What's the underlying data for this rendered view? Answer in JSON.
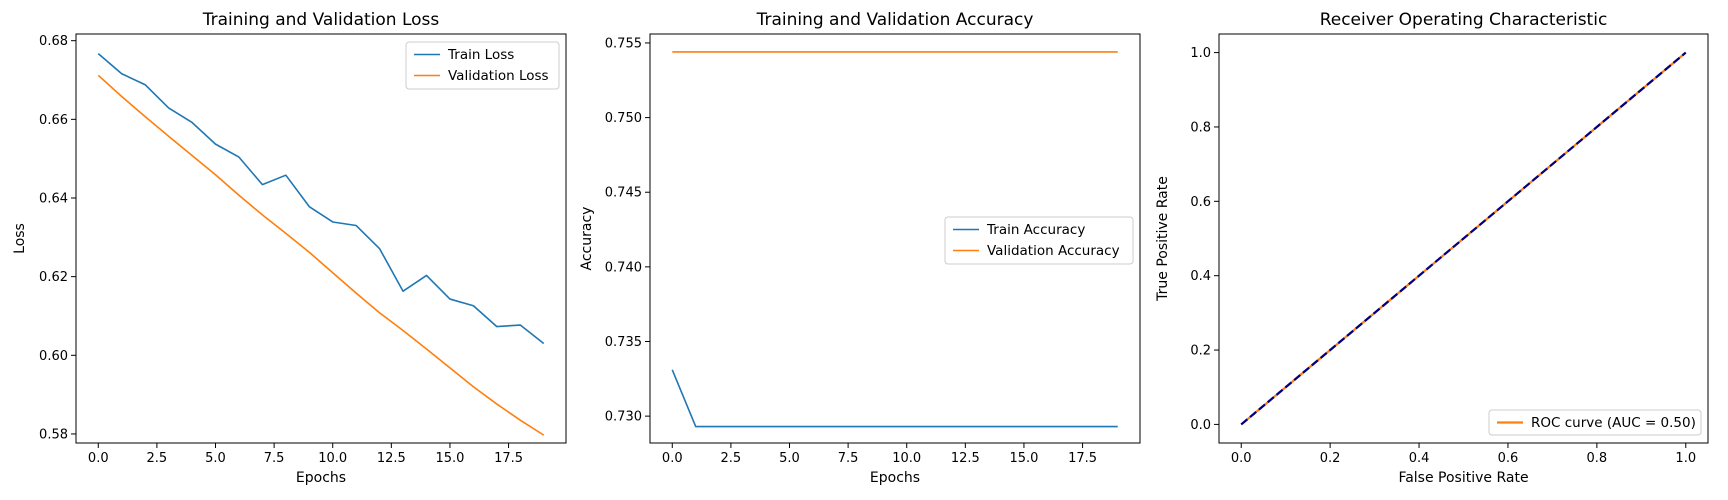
{
  "chart_data": [
    {
      "type": "line",
      "title": "Training and Validation Loss",
      "xlabel": "Epochs",
      "ylabel": "Loss",
      "xlim": [
        -0.95,
        19.95
      ],
      "ylim": [
        0.5777,
        0.6817
      ],
      "xticks": [
        0,
        2.5,
        5,
        7.5,
        10,
        12.5,
        15,
        17.5
      ],
      "xtick_labels": [
        "0.0",
        "2.5",
        "5.0",
        "7.5",
        "10.0",
        "12.5",
        "15.0",
        "17.5"
      ],
      "yticks": [
        0.58,
        0.6,
        0.62,
        0.64,
        0.66,
        0.68
      ],
      "ytick_labels": [
        "0.58",
        "0.60",
        "0.62",
        "0.64",
        "0.66",
        "0.68"
      ],
      "grid": false,
      "legend_position": "upper-right",
      "x": [
        0,
        1,
        2,
        3,
        4,
        5,
        6,
        7,
        8,
        9,
        10,
        11,
        12,
        13,
        14,
        15,
        16,
        17,
        18,
        19
      ],
      "series": [
        {
          "name": "Train Loss",
          "color": "#1f77b4",
          "values": [
            0.6767,
            0.6716,
            0.6688,
            0.6629,
            0.6592,
            0.6537,
            0.6504,
            0.6434,
            0.6458,
            0.6378,
            0.6339,
            0.633,
            0.6271,
            0.6163,
            0.6203,
            0.6143,
            0.6126,
            0.6073,
            0.6077,
            0.603
          ]
        },
        {
          "name": "Validation Loss",
          "color": "#ff7f0e",
          "values": [
            0.6712,
            0.6658,
            0.6607,
            0.6557,
            0.6508,
            0.6459,
            0.6407,
            0.6357,
            0.631,
            0.6262,
            0.621,
            0.6158,
            0.6108,
            0.6063,
            0.6016,
            0.5968,
            0.592,
            0.5876,
            0.5835,
            0.5797
          ]
        }
      ]
    },
    {
      "type": "line",
      "title": "Training and Validation Accuracy",
      "xlabel": "Epochs",
      "ylabel": "Accuracy",
      "xlim": [
        -0.95,
        19.95
      ],
      "ylim": [
        0.7282,
        0.7556
      ],
      "xticks": [
        0,
        2.5,
        5,
        7.5,
        10,
        12.5,
        15,
        17.5
      ],
      "xtick_labels": [
        "0.0",
        "2.5",
        "5.0",
        "7.5",
        "10.0",
        "12.5",
        "15.0",
        "17.5"
      ],
      "yticks": [
        0.73,
        0.735,
        0.74,
        0.745,
        0.75,
        0.755
      ],
      "ytick_labels": [
        "0.730",
        "0.735",
        "0.740",
        "0.745",
        "0.750",
        "0.755"
      ],
      "grid": false,
      "legend_position": "center-right",
      "x": [
        0,
        1,
        2,
        3,
        4,
        5,
        6,
        7,
        8,
        9,
        10,
        11,
        12,
        13,
        14,
        15,
        16,
        17,
        18,
        19
      ],
      "series": [
        {
          "name": "Train Accuracy",
          "color": "#1f77b4",
          "values": [
            0.7331,
            0.7293,
            0.7293,
            0.7293,
            0.7293,
            0.7293,
            0.7293,
            0.7293,
            0.7293,
            0.7293,
            0.7293,
            0.7293,
            0.7293,
            0.7293,
            0.7293,
            0.7293,
            0.7293,
            0.7293,
            0.7293,
            0.7293
          ]
        },
        {
          "name": "Validation Accuracy",
          "color": "#ff7f0e",
          "values": [
            0.7544,
            0.7544,
            0.7544,
            0.7544,
            0.7544,
            0.7544,
            0.7544,
            0.7544,
            0.7544,
            0.7544,
            0.7544,
            0.7544,
            0.7544,
            0.7544,
            0.7544,
            0.7544,
            0.7544,
            0.7544,
            0.7544,
            0.7544
          ]
        }
      ]
    },
    {
      "type": "line",
      "title": "Receiver Operating Characteristic",
      "xlabel": "False Positive Rate",
      "ylabel": "True Positive Rate",
      "xlim": [
        -0.05,
        1.05
      ],
      "ylim": [
        -0.05,
        1.05
      ],
      "xticks": [
        0,
        0.2,
        0.4,
        0.6,
        0.8,
        1.0
      ],
      "xtick_labels": [
        "0.0",
        "0.2",
        "0.4",
        "0.6",
        "0.8",
        "1.0"
      ],
      "yticks": [
        0,
        0.2,
        0.4,
        0.6,
        0.8,
        1.0
      ],
      "ytick_labels": [
        "0.0",
        "0.2",
        "0.4",
        "0.6",
        "0.8",
        "1.0"
      ],
      "grid": false,
      "legend_position": "lower-right",
      "series": [
        {
          "name": "ROC curve (AUC = 0.50)",
          "color": "#ff7f0e",
          "style": "solid",
          "in_legend": true,
          "x": [
            0,
            1
          ],
          "values": [
            0,
            1
          ]
        },
        {
          "name": "",
          "color": "#000080",
          "style": "dashed",
          "in_legend": false,
          "x": [
            0,
            1
          ],
          "values": [
            0,
            1
          ]
        }
      ]
    }
  ]
}
